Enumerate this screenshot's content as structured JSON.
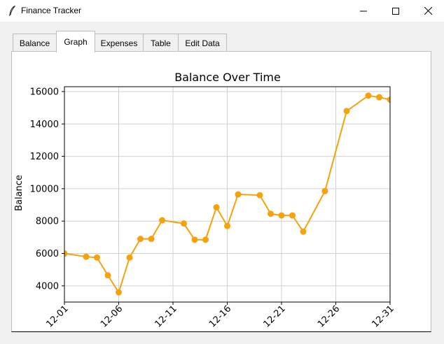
{
  "window": {
    "title": "Finance Tracker",
    "icon": "feather-icon",
    "controls": [
      "minimize-icon",
      "maximize-icon",
      "close-icon"
    ]
  },
  "tabs": [
    {
      "label": "Balance",
      "active": false
    },
    {
      "label": "Graph",
      "active": true
    },
    {
      "label": "Expenses",
      "active": false
    },
    {
      "label": "Table",
      "active": false
    },
    {
      "label": "Edit Data",
      "active": false
    }
  ],
  "colors": {
    "series": "#f7a10c",
    "grid": "#d0d0d0"
  },
  "chart_data": {
    "type": "line",
    "title": "Balance Over Time",
    "xlabel": "",
    "ylabel": "Balance",
    "x_ticks": [
      "12-01",
      "12-06",
      "12-11",
      "12-16",
      "12-21",
      "12-26",
      "12-31"
    ],
    "y_ticks": [
      4000,
      6000,
      8000,
      10000,
      12000,
      14000,
      16000
    ],
    "xlim": [
      "12-01",
      "12-31"
    ],
    "ylim": [
      3000,
      16300
    ],
    "grid": true,
    "series": [
      {
        "name": "",
        "x": [
          "12-01",
          "12-03",
          "12-04",
          "12-05",
          "12-06",
          "12-07",
          "12-08",
          "12-09",
          "12-10",
          "12-12",
          "12-13",
          "12-14",
          "12-15",
          "12-16",
          "12-17",
          "12-19",
          "12-20",
          "12-21",
          "12-22",
          "12-23",
          "12-25",
          "12-27",
          "12-29",
          "12-30",
          "12-31"
        ],
        "values": [
          6000,
          5800,
          5750,
          4650,
          3600,
          5750,
          6900,
          6900,
          8050,
          7850,
          6850,
          6850,
          8850,
          7700,
          9650,
          9600,
          8450,
          8350,
          8350,
          7350,
          9850,
          14800,
          15750,
          15650,
          15500
        ]
      }
    ]
  }
}
